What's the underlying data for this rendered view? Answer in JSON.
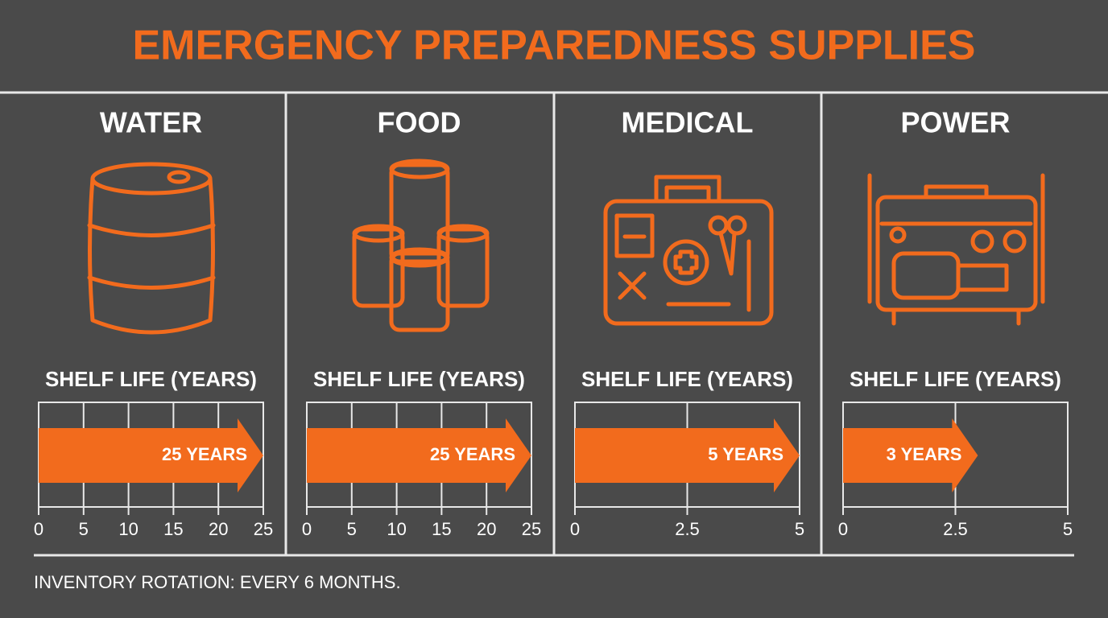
{
  "title": "EMERGENCY PREPAREDNESS SUPPLIES",
  "note": "INVENTORY ROTATION: EVERY 6 MONTHS.",
  "chart_data": [
    {
      "type": "bar",
      "title": "WATER",
      "subtitle": "SHELF LIFE (YEARS)",
      "categories": [
        null
      ],
      "values": [
        25
      ],
      "value_labels": [
        "25 YEARS"
      ],
      "color": "#f26b1d",
      "xlim": [
        0,
        25
      ],
      "xticks": [
        0,
        5,
        10,
        15,
        20,
        25
      ],
      "grid": true
    },
    {
      "type": "bar",
      "title": "FOOD",
      "subtitle": "SHELF LIFE (YEARS)",
      "categories": [
        null
      ],
      "values": [
        25
      ],
      "value_labels": [
        "25 YEARS"
      ],
      "color": "#f26b1d",
      "xlim": [
        0,
        25
      ],
      "xticks": [
        0,
        5,
        10,
        15,
        20,
        25
      ],
      "grid": true
    },
    {
      "type": "bar",
      "title": "MEDICAL",
      "subtitle": "SHELF LIFE (YEARS)",
      "categories": [
        null
      ],
      "values": [
        5
      ],
      "value_labels": [
        "5 YEARS"
      ],
      "color": "#f26b1d",
      "xlim": [
        0,
        5
      ],
      "xticks": [
        0,
        2.5,
        5
      ],
      "grid": true
    },
    {
      "type": "bar",
      "title": "POWER",
      "subtitle": "SHELF LIFE (YEARS)",
      "categories": [
        null
      ],
      "values": [
        3
      ],
      "value_labels": [
        "3 YEARS"
      ],
      "color": "#f26b1d",
      "xlim": [
        0,
        5
      ],
      "xticks": [
        0,
        2.5,
        5
      ],
      "grid": true
    }
  ]
}
